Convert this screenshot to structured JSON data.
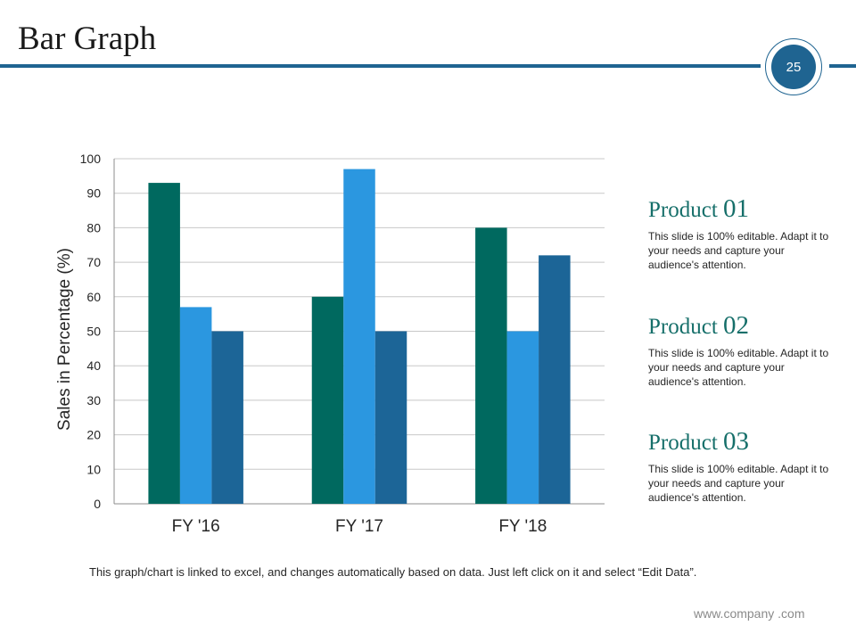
{
  "slide": {
    "title": "Bar Graph",
    "page_number": "25",
    "footnote": "This graph/chart is linked to excel, and changes automatically based on data. Just left click on it and select “Edit Data”.",
    "website": "www.company .com"
  },
  "products": [
    {
      "label": "Product",
      "number": "01",
      "text": "This slide is 100% editable. Adapt it to your needs and capture your audience's attention."
    },
    {
      "label": "Product",
      "number": "02",
      "text": "This slide is 100% editable. Adapt it to your needs and capture your audience's attention."
    },
    {
      "label": "Product",
      "number": "03",
      "text": "This slide is 100% editable. Adapt it to your needs and capture your audience's attention."
    }
  ],
  "colors": {
    "header": "#1f6491",
    "product_title": "#166f6a"
  },
  "chart_data": {
    "type": "bar",
    "categories": [
      "FY '16",
      "FY '17",
      "FY '18"
    ],
    "series": [
      {
        "values": [
          93,
          60,
          80
        ],
        "color": "#00695f"
      },
      {
        "values": [
          57,
          97,
          50
        ],
        "color": "#2b97e0"
      },
      {
        "values": [
          50,
          50,
          72
        ],
        "color": "#1c6597"
      }
    ],
    "ylabel": "Sales in Percentage (%)",
    "xlabel": "",
    "ylim": [
      0,
      100
    ],
    "yticks": [
      0,
      10,
      20,
      30,
      40,
      50,
      60,
      70,
      80,
      90,
      100
    ],
    "grid": true,
    "legend": "none"
  }
}
